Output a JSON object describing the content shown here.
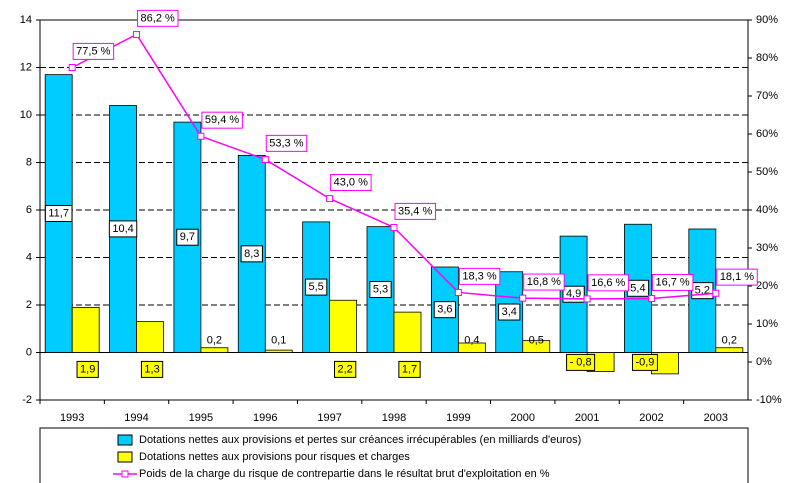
{
  "chart_data": {
    "type": "bar-line",
    "categories": [
      "1993",
      "1994",
      "1995",
      "1996",
      "1997",
      "1998",
      "1999",
      "2000",
      "2001",
      "2002",
      "2003"
    ],
    "series": [
      {
        "name": "Dotations nettes aux provisions et pertes sur créances irrécupérables (en milliards d'euros)",
        "color": "#00ccff",
        "type": "bar",
        "values": [
          11.7,
          10.4,
          9.7,
          8.3,
          5.5,
          5.3,
          3.6,
          3.4,
          4.9,
          5.4,
          5.2
        ],
        "value_labels": [
          "11,7",
          "10,4",
          "9,7",
          "8,3",
          "5,5",
          "5,3",
          "3,6",
          "3,4",
          "4,9",
          "5,4",
          "5,2"
        ]
      },
      {
        "name": "Dotations nettes aux provisions pour risques et charges",
        "color": "#ffff00",
        "type": "bar",
        "values": [
          1.9,
          1.3,
          0.2,
          0.1,
          2.2,
          1.7,
          0.4,
          0.5,
          -0.8,
          -0.9,
          0.2
        ],
        "value_labels": [
          "1,9",
          "1,3",
          "0,2",
          "0,1",
          "2,2",
          "1,7",
          "0,4",
          "0,5",
          "- 0,8",
          "-0,9",
          "0,2"
        ]
      },
      {
        "name": "Poids de la charge du risque de contrepartie dans le résultat brut d'exploitation en %",
        "color": "#ff00ff",
        "type": "line",
        "axis": "y2",
        "values": [
          77.5,
          86.2,
          59.4,
          53.3,
          43.0,
          35.4,
          18.3,
          16.8,
          16.6,
          16.7,
          18.1
        ],
        "value_labels": [
          "77,5 %",
          "86,2 %",
          "59,4 %",
          "53,3 %",
          "43,0 %",
          "35,4 %",
          "18,3 %",
          "16,8 %",
          "16,6 %",
          "16,7 %",
          "18,1 %"
        ]
      }
    ],
    "ylim": [
      -2,
      14
    ],
    "yticks": [
      -2,
      0,
      2,
      4,
      6,
      8,
      10,
      12,
      14
    ],
    "y2lim": [
      -10,
      90
    ],
    "y2ticks": [
      {
        "value": -10,
        "label": "-10%"
      },
      {
        "value": 0,
        "label": "0%"
      },
      {
        "value": 10,
        "label": "10%"
      },
      {
        "value": 20,
        "label": "20%"
      },
      {
        "value": 30,
        "label": "30%"
      },
      {
        "value": 40,
        "label": "40%"
      },
      {
        "value": 50,
        "label": "50%"
      },
      {
        "value": 60,
        "label": "60%"
      },
      {
        "value": 70,
        "label": "70%"
      },
      {
        "value": 80,
        "label": "80%"
      },
      {
        "value": 90,
        "label": "90%"
      }
    ],
    "grid": true
  }
}
